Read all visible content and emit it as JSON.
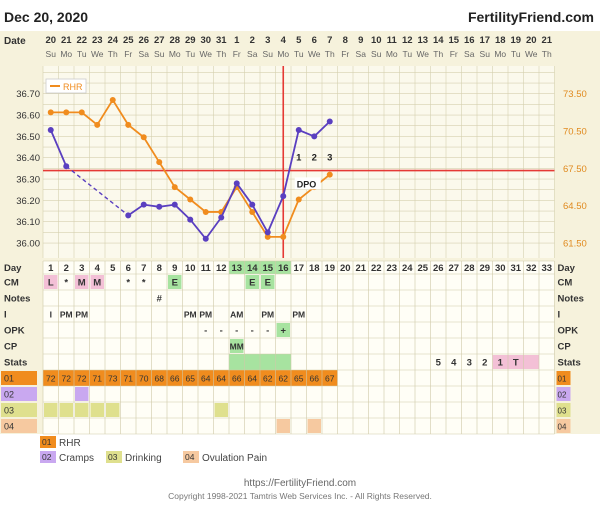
{
  "header": {
    "date": "Dec 20, 2020",
    "brand": "FertilityFriend.com"
  },
  "colors": {
    "bbt": "#5a3fc0",
    "rhr": "#f08c1e",
    "coverline": "#e53935",
    "ovulation": "#e53935",
    "green": "#a7e3a0",
    "pink": "#f3c0d6"
  },
  "row_labels": {
    "date": "Date",
    "day": "Day",
    "cm": "CM",
    "notes": "Notes",
    "i": "I",
    "opk": "OPK",
    "cp": "CP",
    "stats": "Stats"
  },
  "footer": {
    "url": "https://FertilityFriend.com",
    "copyright": "Copyright 1998-2021 Tamtris Web Services Inc. - All Rights Reserved."
  },
  "legend": {
    "rhr_label": "RHR",
    "items": [
      {
        "code": "01",
        "label": "RHR"
      },
      {
        "code": "02",
        "label": "Cramps"
      },
      {
        "code": "03",
        "label": "Drinking"
      },
      {
        "code": "04",
        "label": "Ovulation Pain"
      }
    ]
  },
  "chart_data": {
    "type": "line",
    "dates": [
      "20",
      "21",
      "22",
      "23",
      "24",
      "25",
      "26",
      "27",
      "28",
      "29",
      "30",
      "31",
      "1",
      "2",
      "3",
      "4",
      "5",
      "6",
      "7",
      "8",
      "9",
      "10",
      "11",
      "12",
      "13",
      "14",
      "15",
      "16",
      "17",
      "18",
      "19",
      "20",
      "21"
    ],
    "weekdays": [
      "Su",
      "Mo",
      "Tu",
      "We",
      "Th",
      "Fr",
      "Sa",
      "Su",
      "Mo",
      "Tu",
      "We",
      "Th",
      "Fr",
      "Sa",
      "Su",
      "Mo",
      "Tu",
      "We",
      "Th",
      "Fr",
      "Sa",
      "Su",
      "Mo",
      "Tu",
      "We",
      "Th",
      "Fr",
      "Sa",
      "Su",
      "Mo",
      "Tu",
      "We",
      "Th"
    ],
    "cycle_days": [
      "1",
      "2",
      "3",
      "4",
      "5",
      "6",
      "7",
      "8",
      "9",
      "10",
      "11",
      "12",
      "13",
      "14",
      "15",
      "16",
      "17",
      "18",
      "19",
      "20",
      "21",
      "22",
      "23",
      "24",
      "25",
      "26",
      "27",
      "28",
      "29",
      "30",
      "31",
      "32",
      "33"
    ],
    "y_left_ticks": [
      "36.70",
      "36.60",
      "36.50",
      "36.40",
      "36.30",
      "36.20",
      "36.10",
      "36.00"
    ],
    "y_right_ticks": [
      "73.50",
      "70.50",
      "67.50",
      "64.50",
      "61.50"
    ],
    "ylim_left": [
      35.93,
      36.83
    ],
    "bbt_series": [
      {
        "day": 1,
        "temp": 36.53
      },
      {
        "day": 2,
        "temp": 36.36
      },
      {
        "day": 6,
        "temp": 36.13
      },
      {
        "day": 7,
        "temp": 36.18
      },
      {
        "day": 8,
        "temp": 36.17
      },
      {
        "day": 9,
        "temp": 36.18
      },
      {
        "day": 10,
        "temp": 36.11
      },
      {
        "day": 11,
        "temp": 36.02
      },
      {
        "day": 12,
        "temp": 36.12
      },
      {
        "day": 13,
        "temp": 36.28
      },
      {
        "day": 14,
        "temp": 36.18
      },
      {
        "day": 15,
        "temp": 36.05
      },
      {
        "day": 16,
        "temp": 36.22
      },
      {
        "day": 17,
        "temp": 36.53
      },
      {
        "day": 18,
        "temp": 36.5
      },
      {
        "day": 19,
        "temp": 36.57
      }
    ],
    "bbt_gap": [
      2,
      6
    ],
    "rhr_series": [
      72,
      72,
      72,
      71,
      73,
      71,
      70,
      68,
      66,
      65,
      64,
      64,
      66,
      64,
      62,
      62,
      65,
      66,
      67
    ],
    "coverline": 36.34,
    "ovulation_day": 16,
    "dpo_labels": [
      {
        "day": 17,
        "text": "1"
      },
      {
        "day": 18,
        "text": "2"
      },
      {
        "day": 19,
        "text": "3"
      }
    ],
    "dpo_tag": "DPO",
    "cm": [
      {
        "day": 1,
        "text": "L",
        "bg": "#f3c0d6"
      },
      {
        "day": 2,
        "text": "*",
        "bg": ""
      },
      {
        "day": 3,
        "text": "M",
        "bg": "#f3c0d6"
      },
      {
        "day": 4,
        "text": "M",
        "bg": "#f3c0d6"
      },
      {
        "day": 6,
        "text": "*",
        "bg": ""
      },
      {
        "day": 7,
        "text": "*",
        "bg": ""
      },
      {
        "day": 9,
        "text": "E",
        "bg": "#a7e3a0"
      },
      {
        "day": 14,
        "text": "E",
        "bg": "#a7e3a0"
      },
      {
        "day": 15,
        "text": "E",
        "bg": "#a7e3a0"
      }
    ],
    "notes": [
      {
        "day": 8,
        "text": "#"
      }
    ],
    "intercourse": [
      {
        "day": 1,
        "text": "I"
      },
      {
        "day": 2,
        "text": "PM"
      },
      {
        "day": 3,
        "text": "PM"
      },
      {
        "day": 10,
        "text": "PM"
      },
      {
        "day": 11,
        "text": "PM"
      },
      {
        "day": 13,
        "text": "AM"
      },
      {
        "day": 15,
        "text": "PM"
      },
      {
        "day": 17,
        "text": "PM"
      }
    ],
    "opk": [
      {
        "day": 11,
        "text": "-"
      },
      {
        "day": 12,
        "text": "-"
      },
      {
        "day": 13,
        "text": "-"
      },
      {
        "day": 14,
        "text": "-"
      },
      {
        "day": 15,
        "text": "-"
      },
      {
        "day": 16,
        "text": "+"
      }
    ],
    "cp": [
      {
        "day": 13,
        "text": "MM"
      }
    ],
    "stats": [
      {
        "day": 26,
        "text": "5"
      },
      {
        "day": 27,
        "text": "4"
      },
      {
        "day": 28,
        "text": "3"
      },
      {
        "day": 29,
        "text": "2"
      },
      {
        "day": 30,
        "text": "1"
      },
      {
        "day": 31,
        "text": "T"
      }
    ],
    "green_days": [
      13,
      14,
      15,
      16
    ],
    "fertile_days": [
      14,
      15
    ],
    "custom_rows": [
      {
        "code": "01",
        "values": [
          "72",
          "72",
          "72",
          "71",
          "73",
          "71",
          "70",
          "68",
          "66",
          "65",
          "64",
          "64",
          "66",
          "64",
          "62",
          "62",
          "65",
          "66",
          "67"
        ]
      },
      {
        "code": "02",
        "marked_days": [
          3
        ]
      },
      {
        "code": "03",
        "marked_days": [
          1,
          2,
          3,
          4,
          5,
          12
        ]
      },
      {
        "code": "04",
        "marked_days": [
          16,
          18
        ]
      }
    ]
  }
}
